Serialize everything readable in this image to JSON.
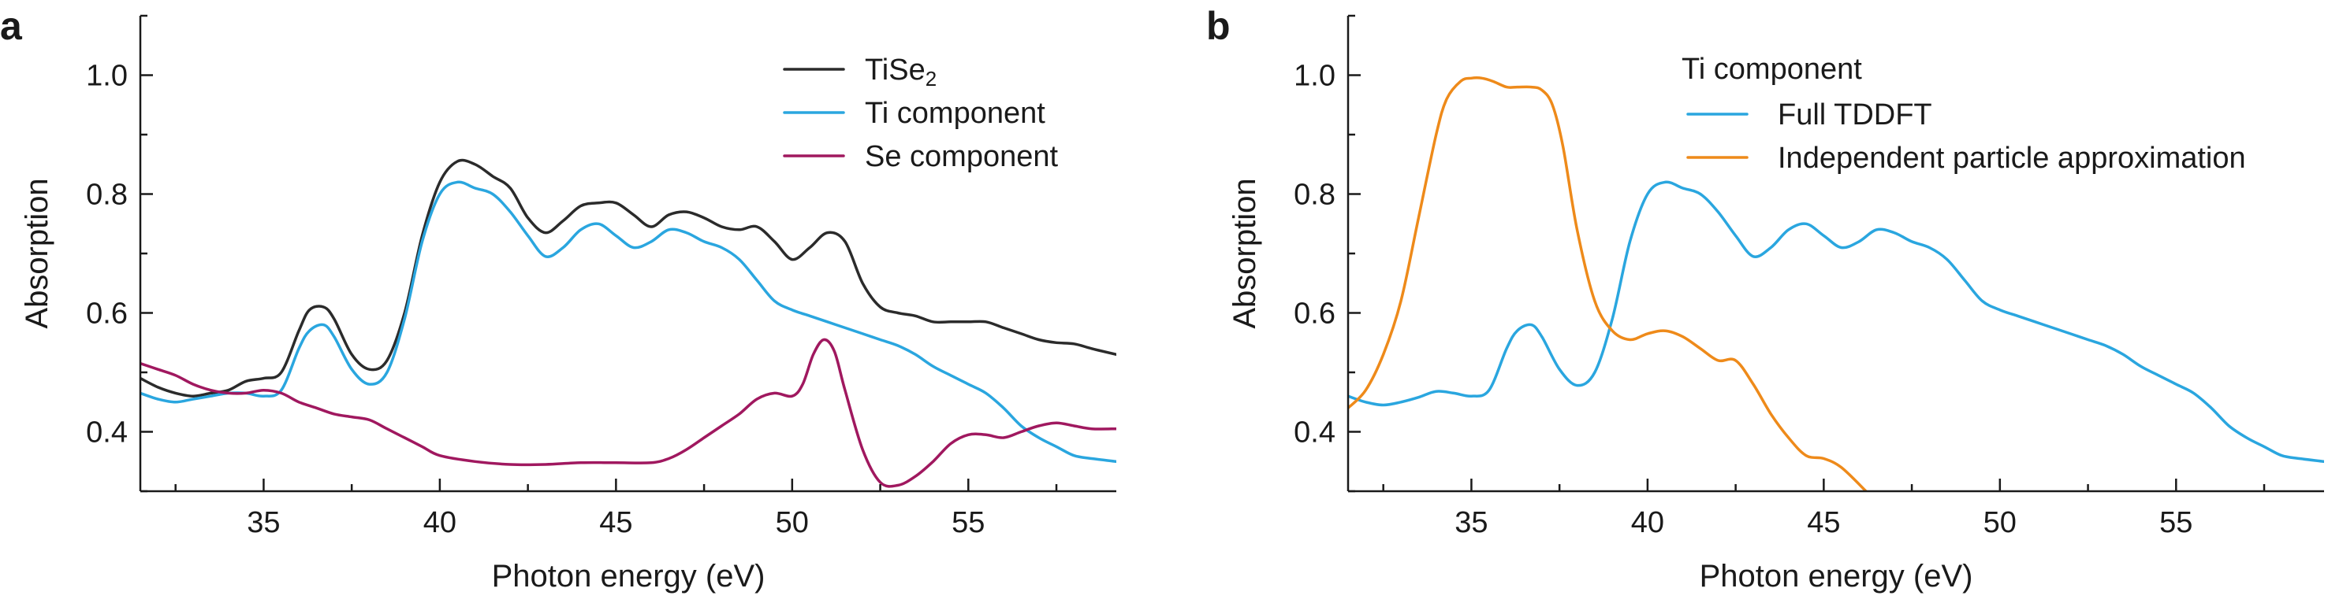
{
  "chart_data": [
    {
      "panel": "a",
      "type": "line",
      "title": "",
      "xlabel": "Photon energy (eV)",
      "ylabel": "Absorption",
      "xlim": [
        31.5,
        59.2
      ],
      "ylim": [
        0.3,
        1.1
      ],
      "xticks": [
        "35",
        "40",
        "45",
        "50",
        "55"
      ],
      "xtick_values": [
        35,
        40,
        45,
        50,
        55
      ],
      "yticks": [
        "0.4",
        "0.6",
        "0.8",
        "1.0"
      ],
      "ytick_values": [
        0.4,
        0.6,
        0.8,
        1.0
      ],
      "legend": "top-right",
      "series": [
        {
          "name": "TiSe",
          "subscript": "2",
          "color": "#2b2b2b",
          "x": [
            31.5,
            32,
            32.5,
            33,
            33.5,
            34,
            34.5,
            35,
            35.5,
            36,
            36.3,
            36.7,
            37,
            37.5,
            38,
            38.5,
            39,
            39.5,
            40,
            40.5,
            41,
            41.5,
            42,
            42.5,
            43,
            43.5,
            44,
            44.5,
            45,
            45.5,
            46,
            46.5,
            47,
            47.5,
            48,
            48.5,
            49,
            49.5,
            50,
            50.5,
            51,
            51.5,
            52,
            52.5,
            53,
            53.5,
            54,
            54.5,
            55,
            55.5,
            56,
            56.5,
            57,
            57.5,
            58,
            58.5,
            59.2
          ],
          "y": [
            0.49,
            0.475,
            0.465,
            0.46,
            0.465,
            0.47,
            0.485,
            0.49,
            0.5,
            0.57,
            0.605,
            0.61,
            0.59,
            0.53,
            0.505,
            0.52,
            0.6,
            0.73,
            0.82,
            0.855,
            0.85,
            0.83,
            0.81,
            0.76,
            0.735,
            0.755,
            0.78,
            0.785,
            0.785,
            0.765,
            0.745,
            0.765,
            0.77,
            0.76,
            0.745,
            0.74,
            0.745,
            0.72,
            0.69,
            0.71,
            0.735,
            0.72,
            0.65,
            0.61,
            0.6,
            0.595,
            0.585,
            0.585,
            0.585,
            0.585,
            0.575,
            0.565,
            0.555,
            0.55,
            0.548,
            0.54,
            0.53
          ]
        },
        {
          "name": "Ti component",
          "color": "#2aa6df",
          "x": [
            31.5,
            32,
            32.5,
            33,
            33.5,
            34,
            34.5,
            35,
            35.5,
            36,
            36.3,
            36.7,
            37,
            37.5,
            38,
            38.5,
            39,
            39.5,
            40,
            40.5,
            41,
            41.5,
            42,
            42.5,
            43,
            43.5,
            44,
            44.5,
            45,
            45.5,
            46,
            46.5,
            47,
            47.5,
            48,
            48.5,
            49,
            49.5,
            50,
            50.5,
            51,
            51.5,
            52,
            52.5,
            53,
            53.5,
            54,
            54.5,
            55,
            55.5,
            56,
            56.5,
            57,
            57.5,
            58,
            58.5,
            59.2
          ],
          "y": [
            0.465,
            0.455,
            0.45,
            0.455,
            0.46,
            0.465,
            0.465,
            0.46,
            0.47,
            0.54,
            0.57,
            0.58,
            0.56,
            0.505,
            0.48,
            0.5,
            0.59,
            0.72,
            0.8,
            0.82,
            0.81,
            0.8,
            0.77,
            0.73,
            0.695,
            0.71,
            0.74,
            0.75,
            0.73,
            0.71,
            0.72,
            0.74,
            0.735,
            0.72,
            0.71,
            0.69,
            0.655,
            0.62,
            0.605,
            0.595,
            0.585,
            0.575,
            0.565,
            0.555,
            0.545,
            0.53,
            0.51,
            0.495,
            0.48,
            0.465,
            0.44,
            0.41,
            0.39,
            0.375,
            0.36,
            0.355,
            0.35
          ]
        },
        {
          "name": "Se component",
          "color": "#a0185f",
          "x": [
            31.5,
            32,
            32.5,
            33,
            33.5,
            34,
            34.5,
            35,
            35.5,
            36,
            36.5,
            37,
            37.5,
            38,
            38.5,
            39,
            39.5,
            40,
            41,
            42,
            43,
            44,
            45,
            46,
            46.5,
            47,
            47.5,
            48,
            48.5,
            49,
            49.5,
            50,
            50.3,
            50.6,
            50.9,
            51.2,
            51.5,
            52,
            52.5,
            53,
            53.5,
            54,
            54.5,
            55,
            55.5,
            56,
            56.5,
            57,
            57.5,
            58,
            58.5,
            59.2
          ],
          "y": [
            0.515,
            0.505,
            0.495,
            0.48,
            0.47,
            0.465,
            0.465,
            0.47,
            0.465,
            0.45,
            0.44,
            0.43,
            0.425,
            0.42,
            0.405,
            0.39,
            0.375,
            0.36,
            0.35,
            0.345,
            0.345,
            0.348,
            0.348,
            0.348,
            0.355,
            0.37,
            0.39,
            0.41,
            0.43,
            0.455,
            0.465,
            0.46,
            0.48,
            0.53,
            0.555,
            0.535,
            0.47,
            0.37,
            0.315,
            0.31,
            0.325,
            0.35,
            0.38,
            0.395,
            0.395,
            0.39,
            0.4,
            0.41,
            0.415,
            0.41,
            0.405,
            0.405
          ]
        }
      ]
    },
    {
      "panel": "b",
      "type": "line",
      "title": "",
      "xlabel": "Photon energy (eV)",
      "ylabel": "Absorption",
      "xlim": [
        31.5,
        59.2
      ],
      "ylim": [
        0.3,
        1.1
      ],
      "xticks": [
        "35",
        "40",
        "45",
        "50",
        "55"
      ],
      "xtick_values": [
        35,
        40,
        45,
        50,
        55
      ],
      "yticks": [
        "0.4",
        "0.6",
        "0.8",
        "1.0"
      ],
      "ytick_values": [
        0.4,
        0.6,
        0.8,
        1.0
      ],
      "legend": "top-right",
      "legend_title": "Ti component",
      "series": [
        {
          "name": "Full TDDFT",
          "color": "#2aa6df",
          "x": [
            31.5,
            32,
            32.5,
            33,
            33.5,
            34,
            34.5,
            35,
            35.5,
            36,
            36.3,
            36.7,
            37,
            37.5,
            38,
            38.5,
            39,
            39.5,
            40,
            40.5,
            41,
            41.5,
            42,
            42.5,
            43,
            43.5,
            44,
            44.5,
            45,
            45.5,
            46,
            46.5,
            47,
            47.5,
            48,
            48.5,
            49,
            49.5,
            50,
            50.5,
            51,
            51.5,
            52,
            52.5,
            53,
            53.5,
            54,
            54.5,
            55,
            55.5,
            56,
            56.5,
            57,
            57.5,
            58,
            58.5,
            59.2
          ],
          "y": [
            0.46,
            0.45,
            0.445,
            0.45,
            0.458,
            0.468,
            0.465,
            0.46,
            0.47,
            0.54,
            0.57,
            0.58,
            0.56,
            0.505,
            0.478,
            0.5,
            0.59,
            0.72,
            0.8,
            0.82,
            0.81,
            0.8,
            0.77,
            0.73,
            0.695,
            0.71,
            0.74,
            0.75,
            0.73,
            0.71,
            0.72,
            0.74,
            0.735,
            0.72,
            0.71,
            0.69,
            0.655,
            0.62,
            0.605,
            0.595,
            0.585,
            0.575,
            0.565,
            0.555,
            0.545,
            0.53,
            0.51,
            0.495,
            0.48,
            0.465,
            0.44,
            0.41,
            0.39,
            0.375,
            0.36,
            0.355,
            0.35
          ]
        },
        {
          "name": "Independent particle approximation",
          "color": "#ee8a1a",
          "x": [
            31.5,
            32,
            32.5,
            33,
            33.5,
            34,
            34.3,
            34.7,
            35,
            35.3,
            35.6,
            36,
            36.3,
            36.7,
            37,
            37.3,
            37.6,
            38,
            38.5,
            39,
            39.5,
            40,
            40.5,
            41,
            41.5,
            42,
            42.5,
            43,
            43.5,
            44,
            44.5,
            45,
            45.5,
            46.2
          ],
          "y": [
            0.44,
            0.47,
            0.53,
            0.62,
            0.76,
            0.9,
            0.96,
            0.99,
            0.995,
            0.995,
            0.99,
            0.98,
            0.98,
            0.98,
            0.975,
            0.95,
            0.88,
            0.74,
            0.62,
            0.57,
            0.555,
            0.565,
            0.57,
            0.56,
            0.54,
            0.52,
            0.52,
            0.48,
            0.43,
            0.39,
            0.36,
            0.355,
            0.34,
            0.3
          ]
        }
      ]
    }
  ]
}
